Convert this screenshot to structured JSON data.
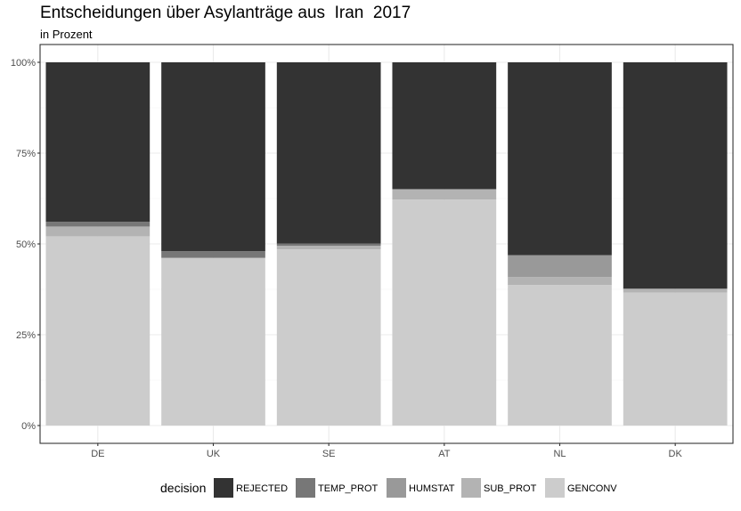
{
  "chart_data": {
    "type": "bar",
    "stacked": true,
    "title": "Entscheidungen über Asylanträge aus  Iran  2017",
    "subtitle": "in Prozent",
    "xlabel": "",
    "ylabel": "",
    "categories": [
      "DE",
      "UK",
      "SE",
      "AT",
      "NL",
      "DK"
    ],
    "ylim": [
      0,
      100
    ],
    "yticks": [
      0,
      25,
      50,
      75,
      100
    ],
    "ytick_labels": [
      "0%",
      "25%",
      "50%",
      "75%",
      "100%"
    ],
    "grid": true,
    "legend": {
      "title": "decision",
      "position": "bottom"
    },
    "stack_order_bottom_to_top": [
      "GENCONV",
      "SUB_PROT",
      "HUMSTAT",
      "TEMP_PROT",
      "REJECTED"
    ],
    "series": [
      {
        "name": "REJECTED",
        "color": "#333333",
        "values": [
          43.9,
          52.0,
          49.9,
          34.9,
          53.1,
          62.3
        ]
      },
      {
        "name": "TEMP_PROT",
        "color": "#777777",
        "values": [
          1.3,
          1.8,
          0.6,
          0.1,
          0.0,
          0.1
        ]
      },
      {
        "name": "HUMSTAT",
        "color": "#999999",
        "values": [
          0.1,
          0.0,
          0.0,
          0.0,
          6.0,
          0.0
        ]
      },
      {
        "name": "SUB_PROT",
        "color": "#b3b3b3",
        "values": [
          2.6,
          0.1,
          1.0,
          2.8,
          2.2,
          1.0
        ]
      },
      {
        "name": "GENCONV",
        "color": "#cccccc",
        "values": [
          52.1,
          46.1,
          48.5,
          62.2,
          38.7,
          36.6
        ]
      }
    ]
  }
}
